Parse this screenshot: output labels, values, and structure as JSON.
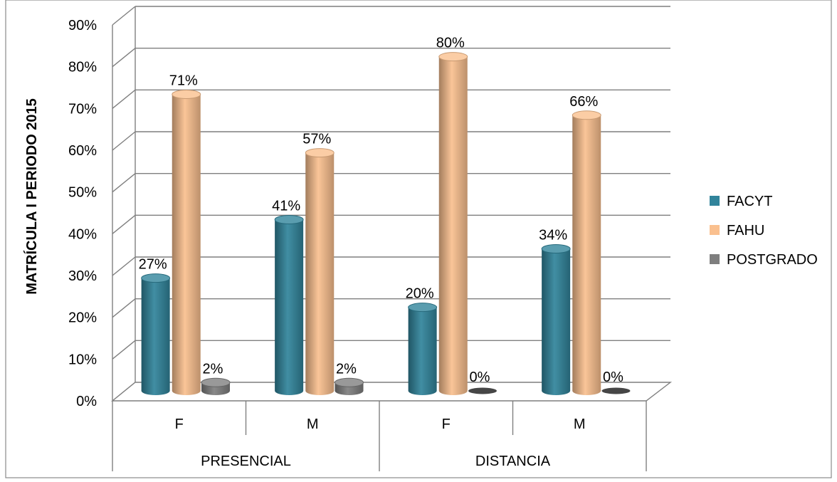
{
  "chart_data": {
    "type": "bar",
    "title": "",
    "ylabel": "MATRÍCULA I PERIODO 2015",
    "xlabel": "",
    "ylim": [
      0,
      90
    ],
    "y_ticks": [
      "0%",
      "10%",
      "20%",
      "30%",
      "40%",
      "50%",
      "60%",
      "70%",
      "80%",
      "90%"
    ],
    "grid": true,
    "legend_position": "right",
    "categories": [
      "F",
      "M",
      "F",
      "M"
    ],
    "groups": [
      {
        "label": "PRESENCIAL",
        "span": 2
      },
      {
        "label": "DISTANCIA",
        "span": 2
      }
    ],
    "series": [
      {
        "name": "FACYT",
        "color": "#31849b",
        "values": [
          27,
          41,
          20,
          34
        ],
        "labels": [
          "27%",
          "41%",
          "20%",
          "34%"
        ]
      },
      {
        "name": "FAHU",
        "color": "#fac08f",
        "values": [
          71,
          57,
          80,
          66
        ],
        "labels": [
          "71%",
          "57%",
          "80%",
          "66%"
        ]
      },
      {
        "name": "POSTGRADO",
        "color": "#7f7f7f",
        "values": [
          2,
          2,
          0,
          0
        ],
        "labels": [
          "2%",
          "2%",
          "0%",
          "0%"
        ]
      }
    ]
  }
}
